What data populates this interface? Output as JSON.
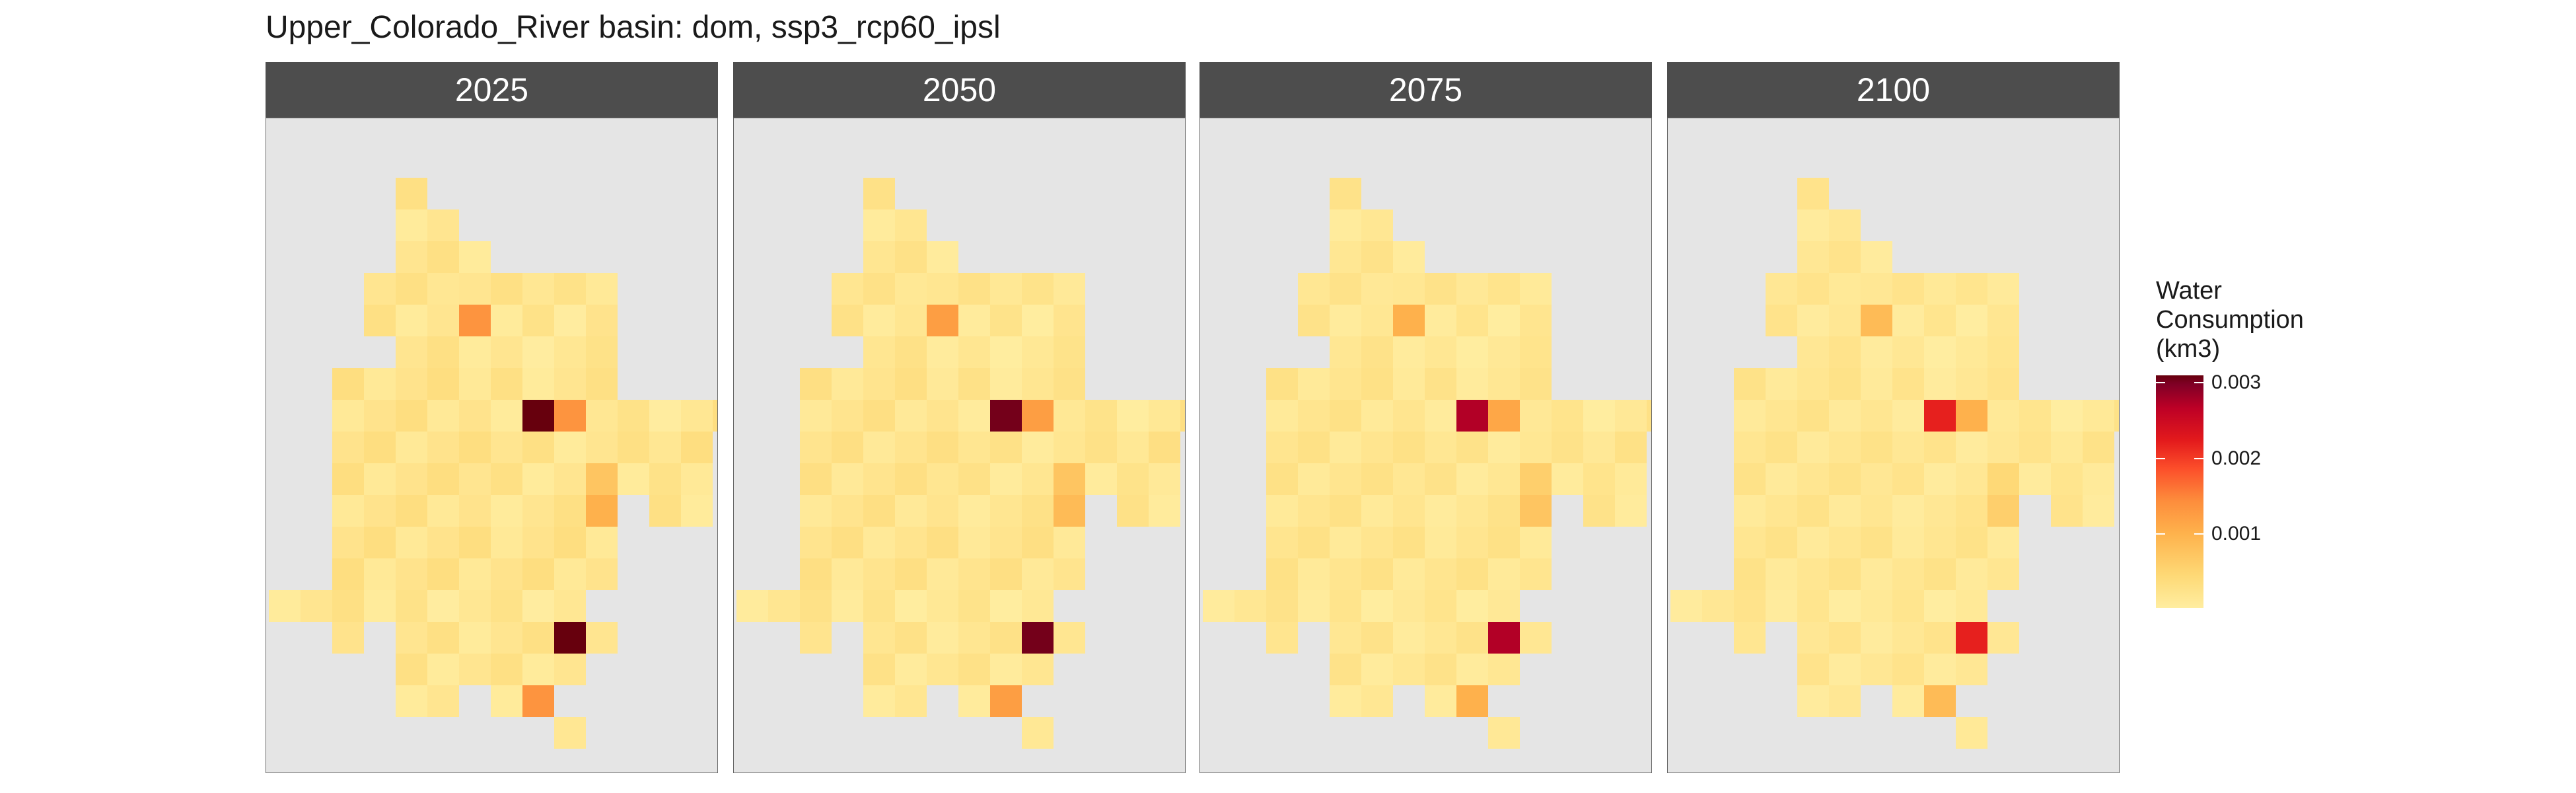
{
  "title": "Upper_Colorado_River basin: dom, ssp3_rcp60_ipsl",
  "legend": {
    "title_lines": [
      "Water",
      "Consumption",
      "(km3)"
    ],
    "ticks": [
      "0.003",
      "0.002",
      "0.001"
    ],
    "tick_values": [
      0.003,
      0.002,
      0.001
    ],
    "range": [
      2e-05,
      0.0031
    ],
    "colors": [
      "#ffeda0",
      "#fed976",
      "#feb24c",
      "#fd8d3c",
      "#fc4e2a",
      "#e31a1c",
      "#bd0026",
      "#800026",
      "#67000d"
    ]
  },
  "chart_data": {
    "type": "heatmap",
    "title": "Upper_Colorado_River basin: dom, ssp3_rcp60_ipsl",
    "facets": [
      "2025",
      "2050",
      "2075",
      "2100"
    ],
    "grid": false,
    "legend_placement": "right",
    "variable": "Water Consumption (km3)",
    "mask": [
      "....2..........",
      "....23.........",
      "....234........",
      "...12245566....",
      "...12345566....",
      "....2345567....",
      "..123455678....",
      "..12345567789aa",
      "..123455678999.",
      "..123445678999.",
      "..123455678.12.",
      "..123456789....",
      "..123456789....",
      "1234456789.....",
      "..1.2345678....",
      "....234567.....",
      "....23.56......",
      ".........6....."
    ],
    "base_values": [
      [
        5e-05,
        0,
        0,
        0,
        0,
        0,
        0,
        0,
        0,
        0,
        0,
        0,
        0,
        0,
        0
      ]
    ],
    "hotspots_by_facet": [
      {
        "r7c8": 0.0031,
        "r7c9": 0.0011,
        "r4c6": 0.0011,
        "r10c10": 0.0008,
        "r9c10": 0.0006,
        "r14c9": 0.0031,
        "r13c10": 0.0012,
        "r16c8": 0.0011
      },
      {
        "r7c8": 0.0029,
        "r7c9": 0.001,
        "r4c6": 0.001,
        "r10c10": 0.0007,
        "r9c10": 0.0006,
        "r14c9": 0.0029,
        "r13c10": 0.0011,
        "r16c8": 0.001
      },
      {
        "r7c8": 0.0024,
        "r7c9": 0.0009,
        "r4c6": 0.0008,
        "r10c10": 0.0006,
        "r9c10": 0.0005,
        "r14c9": 0.0024,
        "r13c10": 0.0009,
        "r16c8": 0.0008
      },
      {
        "r7c8": 0.0019,
        "r7c9": 0.0008,
        "r4c6": 0.0007,
        "r10c10": 0.0005,
        "r9c10": 0.0004,
        "r14c9": 0.0019,
        "r13c10": 0.0008,
        "r16c8": 0.0007
      }
    ]
  }
}
